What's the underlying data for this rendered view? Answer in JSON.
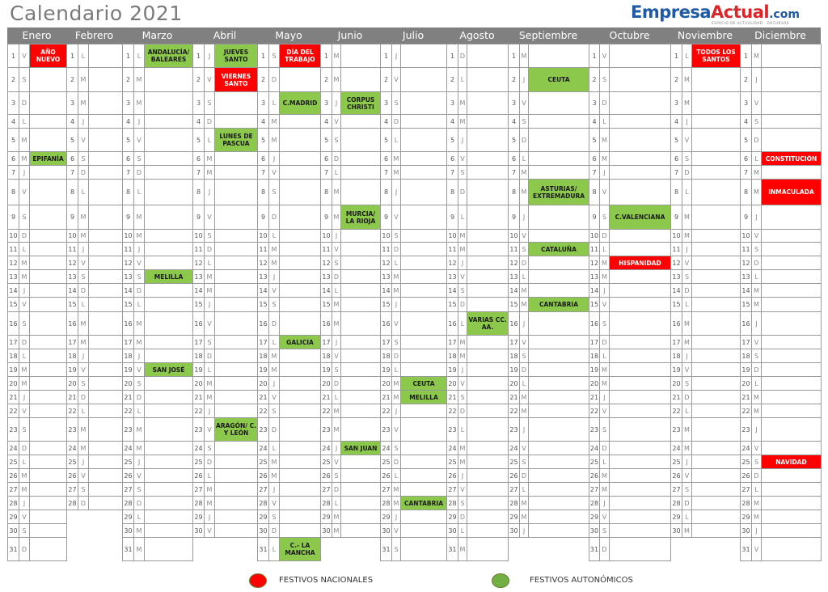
{
  "title": "Calendario 2021",
  "logo": {
    "part1": "Empresa",
    "part2": "Actual",
    "part3": ".com",
    "tagline": "ESPACIO DE ACTUALIDAD · RECURSOS"
  },
  "colors": {
    "national": "#ff0000",
    "autonomic": "#8cc84b",
    "header": "#808080",
    "border": "#9a9a9a"
  },
  "legend": [
    {
      "label": "FESTIVOS NACIONALES",
      "type": "nat",
      "color": "#ff0000"
    },
    {
      "label": "FESTIVOS AUTONÓMICOS",
      "type": "aut",
      "color": "#72b043"
    }
  ],
  "months": [
    {
      "name": "Enero",
      "days": [
        "V",
        "S",
        "D",
        "L",
        "M",
        "M",
        "J",
        "V",
        "S",
        "D",
        "L",
        "M",
        "M",
        "J",
        "V",
        "S",
        "D",
        "L",
        "M",
        "M",
        "J",
        "V",
        "S",
        "D",
        "L",
        "M",
        "M",
        "J",
        "V",
        "S",
        "D"
      ],
      "events": [
        {
          "day": 1,
          "label": "AÑO NUEVO",
          "type": "nat"
        },
        {
          "day": 6,
          "label": "EPIFANÍA",
          "type": "aut"
        }
      ]
    },
    {
      "name": "Febrero",
      "days": [
        "L",
        "M",
        "M",
        "J",
        "V",
        "S",
        "D",
        "L",
        "M",
        "M",
        "J",
        "V",
        "S",
        "D",
        "L",
        "M",
        "M",
        "J",
        "V",
        "S",
        "D",
        "L",
        "M",
        "M",
        "J",
        "V",
        "S",
        "D"
      ],
      "events": []
    },
    {
      "name": "Marzo",
      "days": [
        "L",
        "M",
        "M",
        "J",
        "V",
        "S",
        "D",
        "L",
        "M",
        "M",
        "J",
        "V",
        "S",
        "D",
        "L",
        "M",
        "M",
        "J",
        "V",
        "S",
        "D",
        "L",
        "M",
        "M",
        "J",
        "V",
        "S",
        "D",
        "L",
        "M",
        "M"
      ],
      "events": [
        {
          "day": 1,
          "label": "ANDALUCÍA/ BALEARES",
          "type": "aut"
        },
        {
          "day": 13,
          "label": "MELILLA",
          "type": "aut"
        },
        {
          "day": 19,
          "label": "SAN JOSÉ",
          "type": "aut"
        }
      ]
    },
    {
      "name": "Abril",
      "days": [
        "J",
        "V",
        "S",
        "D",
        "L",
        "M",
        "M",
        "J",
        "V",
        "S",
        "D",
        "L",
        "M",
        "M",
        "J",
        "V",
        "S",
        "D",
        "L",
        "M",
        "M",
        "J",
        "V",
        "S",
        "D",
        "L",
        "M",
        "M",
        "J",
        "V"
      ],
      "events": [
        {
          "day": 1,
          "label": "JUEVES SANTO",
          "type": "aut"
        },
        {
          "day": 2,
          "label": "VIERNES SANTO",
          "type": "nat"
        },
        {
          "day": 5,
          "label": "LUNES DE PASCUA",
          "type": "aut"
        },
        {
          "day": 23,
          "label": "ARAGÓN/ C. Y LEÓN",
          "type": "aut"
        }
      ]
    },
    {
      "name": "Mayo",
      "days": [
        "S",
        "D",
        "L",
        "M",
        "M",
        "J",
        "V",
        "S",
        "D",
        "L",
        "M",
        "M",
        "J",
        "V",
        "S",
        "D",
        "L",
        "M",
        "M",
        "J",
        "V",
        "S",
        "D",
        "L",
        "M",
        "M",
        "J",
        "V",
        "S",
        "D",
        "L"
      ],
      "events": [
        {
          "day": 1,
          "label": "DÍA DEL TRABAJO",
          "type": "nat"
        },
        {
          "day": 3,
          "label": "C.MADRID",
          "type": "aut"
        },
        {
          "day": 17,
          "label": "GALICIA",
          "type": "aut"
        },
        {
          "day": 31,
          "label": "C.- LA MANCHA",
          "type": "aut"
        }
      ]
    },
    {
      "name": "Junio",
      "days": [
        "M",
        "M",
        "J",
        "V",
        "S",
        "D",
        "L",
        "M",
        "M",
        "J",
        "V",
        "S",
        "D",
        "L",
        "M",
        "M",
        "J",
        "V",
        "S",
        "D",
        "L",
        "M",
        "M",
        "J",
        "V",
        "S",
        "D",
        "L",
        "M",
        "M"
      ],
      "events": [
        {
          "day": 3,
          "label": "CORPUS CHRISTI",
          "type": "aut"
        },
        {
          "day": 9,
          "label": "MURCIA/ LA RIOJA",
          "type": "aut"
        },
        {
          "day": 24,
          "label": "SAN JUAN",
          "type": "aut"
        }
      ]
    },
    {
      "name": "Julio",
      "days": [
        "J",
        "V",
        "S",
        "D",
        "L",
        "M",
        "M",
        "J",
        "V",
        "S",
        "D",
        "L",
        "M",
        "M",
        "J",
        "V",
        "S",
        "D",
        "L",
        "M",
        "M",
        "J",
        "V",
        "S",
        "D",
        "L",
        "M",
        "M",
        "J",
        "V",
        "S"
      ],
      "events": [
        {
          "day": 20,
          "label": "CEUTA",
          "type": "aut"
        },
        {
          "day": 21,
          "label": "MELILLA",
          "type": "aut"
        },
        {
          "day": 28,
          "label": "CANTABRIA",
          "type": "aut"
        }
      ]
    },
    {
      "name": "Agosto",
      "days": [
        "D",
        "L",
        "M",
        "M",
        "J",
        "V",
        "S",
        "D",
        "L",
        "M",
        "M",
        "J",
        "V",
        "S",
        "D",
        "L",
        "M",
        "M",
        "J",
        "V",
        "S",
        "D",
        "L",
        "M",
        "M",
        "J",
        "V",
        "S",
        "D",
        "L",
        "M"
      ],
      "events": [
        {
          "day": 16,
          "label": "VARIAS CC. AA.",
          "type": "aut"
        }
      ]
    },
    {
      "name": "Septiembre",
      "days": [
        "M",
        "J",
        "V",
        "S",
        "D",
        "L",
        "M",
        "M",
        "J",
        "V",
        "S",
        "D",
        "L",
        "M",
        "M",
        "J",
        "V",
        "S",
        "D",
        "L",
        "M",
        "M",
        "J",
        "V",
        "S",
        "D",
        "L",
        "M",
        "M",
        "J"
      ],
      "events": [
        {
          "day": 2,
          "label": "CEUTA",
          "type": "aut"
        },
        {
          "day": 8,
          "label": "ASTURIAS/ EXTREMADURA",
          "type": "aut"
        },
        {
          "day": 11,
          "label": "CATALUÑA",
          "type": "aut"
        },
        {
          "day": 15,
          "label": "CANTABRIA",
          "type": "aut"
        }
      ]
    },
    {
      "name": "Octubre",
      "days": [
        "V",
        "S",
        "D",
        "L",
        "M",
        "M",
        "J",
        "V",
        "S",
        "D",
        "L",
        "M",
        "M",
        "J",
        "V",
        "S",
        "D",
        "L",
        "M",
        "M",
        "J",
        "V",
        "S",
        "D",
        "L",
        "M",
        "M",
        "J",
        "V",
        "S",
        "D"
      ],
      "events": [
        {
          "day": 9,
          "label": "C.VALENCIANA",
          "type": "aut"
        },
        {
          "day": 12,
          "label": "HISPANIDAD",
          "type": "nat"
        }
      ]
    },
    {
      "name": "Noviembre",
      "days": [
        "L",
        "M",
        "M",
        "J",
        "V",
        "S",
        "D",
        "L",
        "M",
        "M",
        "J",
        "V",
        "S",
        "D",
        "L",
        "M",
        "M",
        "J",
        "V",
        "S",
        "D",
        "L",
        "M",
        "M",
        "J",
        "V",
        "S",
        "D",
        "L",
        "M"
      ],
      "events": [
        {
          "day": 1,
          "label": "TODOS LOS SANTOS",
          "type": "nat"
        }
      ]
    },
    {
      "name": "Diciembre",
      "days": [
        "M",
        "J",
        "V",
        "S",
        "D",
        "L",
        "M",
        "M",
        "J",
        "V",
        "S",
        "D",
        "L",
        "M",
        "M",
        "J",
        "V",
        "S",
        "D",
        "L",
        "M",
        "M",
        "J",
        "V",
        "S",
        "D",
        "L",
        "M",
        "M",
        "J",
        "V"
      ],
      "events": [
        {
          "day": 6,
          "label": "CONSTITUCIÓN",
          "type": "nat"
        },
        {
          "day": 8,
          "label": "INMACULADA",
          "type": "nat"
        },
        {
          "day": 25,
          "label": "NAVIDAD",
          "type": "nat"
        }
      ]
    }
  ]
}
